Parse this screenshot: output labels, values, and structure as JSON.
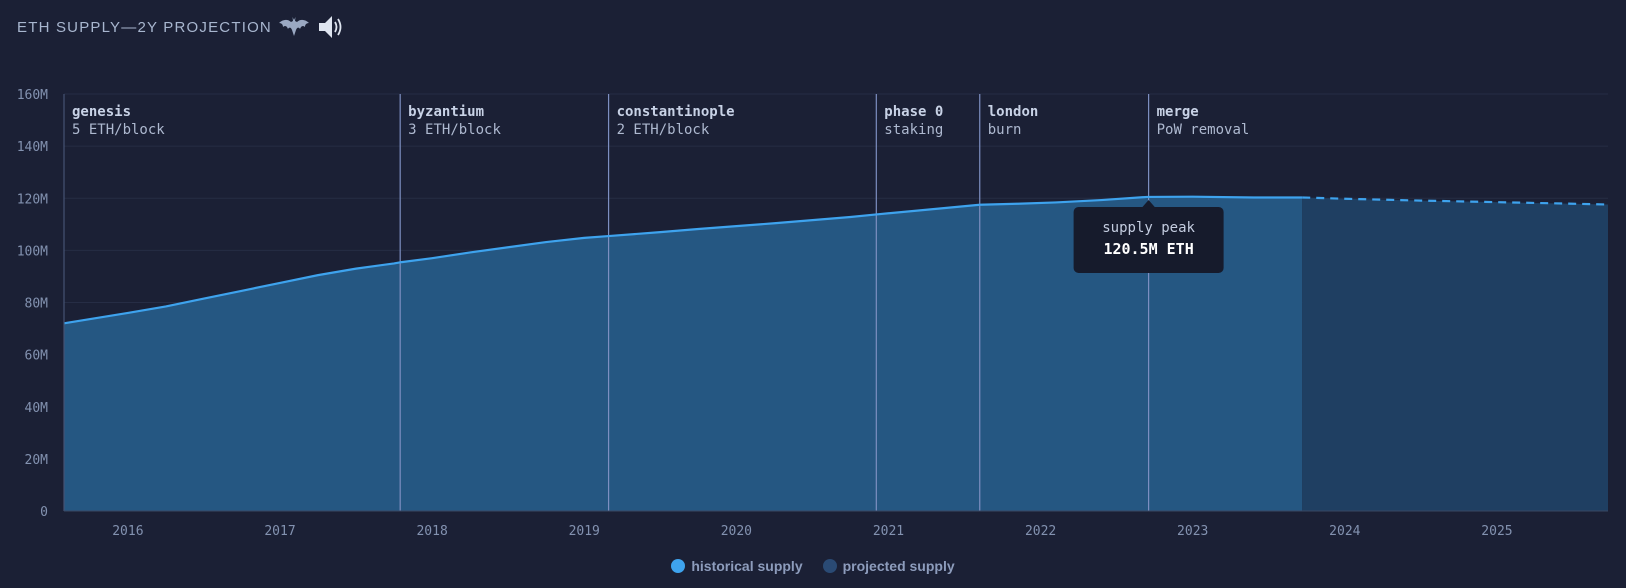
{
  "header": {
    "title": "ETH SUPPLY—2Y PROJECTION",
    "bat_icon": "bat-icon",
    "sound_icon": "speaker-icon"
  },
  "colors": {
    "background": "#1b2035",
    "historical_line": "#3ea3ee",
    "historical_fill": "#255782",
    "projected_fill": "#1f3f62",
    "event_line": "#7d8fc1",
    "grid": "#262d45",
    "tooltip_bg": "#161b2c"
  },
  "tooltip": {
    "label": "supply peak",
    "value": "120.5M ETH"
  },
  "legend": {
    "historical": "historical supply",
    "projected": "projected supply"
  },
  "chart_data": {
    "type": "area",
    "title": "ETH SUPPLY—2Y PROJECTION",
    "xlabel": "",
    "ylabel": "",
    "x_range": [
      2015.58,
      2025.73
    ],
    "ylim": [
      0,
      160
    ],
    "y_unit": "M",
    "y_ticks": [
      {
        "value": 0,
        "label": "0"
      },
      {
        "value": 20,
        "label": "20M"
      },
      {
        "value": 40,
        "label": "40M"
      },
      {
        "value": 60,
        "label": "60M"
      },
      {
        "value": 80,
        "label": "80M"
      },
      {
        "value": 100,
        "label": "100M"
      },
      {
        "value": 120,
        "label": "120M"
      },
      {
        "value": 140,
        "label": "140M"
      },
      {
        "value": 160,
        "label": "160M"
      }
    ],
    "x_ticks": [
      {
        "value": 2016,
        "label": "2016"
      },
      {
        "value": 2017,
        "label": "2017"
      },
      {
        "value": 2018,
        "label": "2018"
      },
      {
        "value": 2019,
        "label": "2019"
      },
      {
        "value": 2020,
        "label": "2020"
      },
      {
        "value": 2021,
        "label": "2021"
      },
      {
        "value": 2022,
        "label": "2022"
      },
      {
        "value": 2023,
        "label": "2023"
      },
      {
        "value": 2024,
        "label": "2024"
      },
      {
        "value": 2025,
        "label": "2025"
      }
    ],
    "grid": true,
    "legend_position": "bottom-center",
    "series": [
      {
        "name": "historical supply",
        "style": "solid",
        "x": [
          2015.58,
          2016.0,
          2016.25,
          2016.5,
          2016.75,
          2017.0,
          2017.25,
          2017.5,
          2017.75,
          2017.8,
          2018.0,
          2018.25,
          2018.5,
          2018.75,
          2019.0,
          2019.16,
          2019.5,
          2019.75,
          2020.0,
          2020.25,
          2020.5,
          2020.75,
          2020.92,
          2021.25,
          2021.6,
          2021.85,
          2022.1,
          2022.4,
          2022.7,
          2023.0,
          2023.4,
          2023.72
        ],
        "values": [
          72.0,
          76.0,
          78.5,
          81.5,
          84.5,
          87.5,
          90.5,
          93.0,
          95.0,
          95.5,
          97.0,
          99.2,
          101.2,
          103.2,
          104.8,
          105.5,
          107.0,
          108.2,
          109.3,
          110.4,
          111.6,
          112.8,
          113.8,
          115.6,
          117.5,
          117.9,
          118.4,
          119.3,
          120.5,
          120.6,
          120.3,
          120.3
        ]
      },
      {
        "name": "projected supply",
        "style": "dashed",
        "x": [
          2023.72,
          2024.0,
          2024.5,
          2025.0,
          2025.5,
          2025.73
        ],
        "values": [
          120.3,
          119.8,
          119.1,
          118.5,
          117.9,
          117.6
        ]
      }
    ],
    "events": [
      {
        "x": 2015.58,
        "name": "genesis",
        "detail": "5 ETH/block"
      },
      {
        "x": 2017.79,
        "name": "byzantium",
        "detail": "3 ETH/block"
      },
      {
        "x": 2019.16,
        "name": "constantinople",
        "detail": "2 ETH/block"
      },
      {
        "x": 2020.92,
        "name": "phase 0",
        "detail": "staking"
      },
      {
        "x": 2021.6,
        "name": "london",
        "detail": "burn"
      },
      {
        "x": 2022.71,
        "name": "merge",
        "detail": "PoW removal"
      }
    ],
    "annotations": [
      {
        "x": 2022.71,
        "y": 120.5,
        "label": "supply peak",
        "value": "120.5M ETH"
      }
    ]
  }
}
